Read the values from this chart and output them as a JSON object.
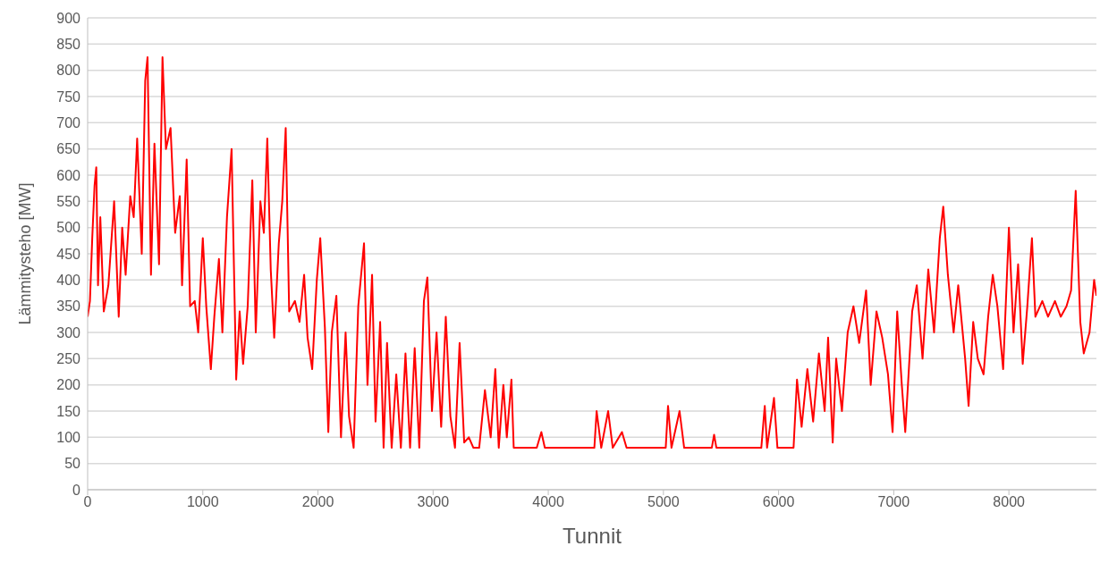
{
  "chart_data": {
    "type": "line",
    "xlabel": "Tunnit",
    "ylabel": "Lämmitysteho [MW]",
    "xlim": [
      0,
      8760
    ],
    "xticks": [
      0,
      1000,
      2000,
      3000,
      4000,
      5000,
      6000,
      7000,
      8000
    ],
    "ylim": [
      0,
      900
    ],
    "yticks": [
      0,
      50,
      100,
      150,
      200,
      250,
      300,
      350,
      400,
      450,
      500,
      550,
      600,
      650,
      700,
      750,
      800,
      850,
      900
    ],
    "grid": "y",
    "legend": false,
    "marker": "none",
    "line_style": "solid",
    "series": [
      {
        "color": "#ff0000",
        "x": [
          0,
          20,
          40,
          60,
          75,
          90,
          110,
          140,
          180,
          230,
          270,
          300,
          330,
          370,
          400,
          430,
          470,
          500,
          520,
          550,
          580,
          620,
          650,
          680,
          720,
          760,
          800,
          820,
          860,
          890,
          930,
          960,
          1000,
          1030,
          1070,
          1100,
          1140,
          1170,
          1210,
          1250,
          1270,
          1290,
          1320,
          1350,
          1390,
          1430,
          1460,
          1500,
          1530,
          1560,
          1590,
          1620,
          1660,
          1690,
          1720,
          1750,
          1800,
          1840,
          1880,
          1910,
          1950,
          1990,
          2020,
          2060,
          2090,
          2120,
          2160,
          2200,
          2240,
          2270,
          2310,
          2350,
          2400,
          2430,
          2470,
          2500,
          2540,
          2570,
          2600,
          2640,
          2680,
          2720,
          2760,
          2800,
          2840,
          2880,
          2920,
          2950,
          2990,
          3030,
          3070,
          3110,
          3150,
          3190,
          3230,
          3270,
          3310,
          3350,
          3400,
          3450,
          3500,
          3540,
          3570,
          3610,
          3640,
          3680,
          3700,
          3900,
          3940,
          3970,
          4400,
          4420,
          4460,
          4520,
          4560,
          4640,
          4680,
          5020,
          5040,
          5070,
          5140,
          5180,
          5420,
          5440,
          5460,
          5850,
          5880,
          5900,
          5960,
          5990,
          6130,
          6160,
          6200,
          6250,
          6300,
          6350,
          6400,
          6430,
          6470,
          6500,
          6550,
          6600,
          6650,
          6700,
          6760,
          6800,
          6850,
          6900,
          6950,
          6990,
          7030,
          7070,
          7100,
          7160,
          7200,
          7250,
          7300,
          7350,
          7400,
          7430,
          7470,
          7520,
          7560,
          7620,
          7650,
          7690,
          7730,
          7780,
          7820,
          7860,
          7900,
          7950,
          8000,
          8040,
          8080,
          8120,
          8160,
          8200,
          8230,
          8290,
          8340,
          8400,
          8450,
          8500,
          8540,
          8580,
          8620,
          8650,
          8700,
          8740,
          8760
        ],
        "values": [
          330,
          360,
          480,
          580,
          615,
          390,
          520,
          340,
          390,
          550,
          330,
          500,
          410,
          560,
          520,
          670,
          450,
          780,
          825,
          410,
          660,
          430,
          825,
          650,
          690,
          490,
          560,
          390,
          630,
          350,
          360,
          300,
          480,
          350,
          230,
          330,
          440,
          300,
          520,
          650,
          430,
          210,
          340,
          240,
          350,
          590,
          300,
          550,
          490,
          670,
          420,
          290,
          470,
          550,
          690,
          340,
          360,
          320,
          410,
          290,
          230,
          400,
          480,
          310,
          110,
          300,
          370,
          100,
          300,
          140,
          80,
          350,
          470,
          200,
          410,
          130,
          320,
          80,
          280,
          80,
          220,
          80,
          260,
          80,
          270,
          80,
          360,
          405,
          150,
          300,
          120,
          330,
          140,
          80,
          280,
          90,
          100,
          80,
          80,
          190,
          100,
          230,
          80,
          200,
          100,
          210,
          80,
          80,
          110,
          80,
          80,
          150,
          80,
          150,
          80,
          110,
          80,
          80,
          160,
          80,
          150,
          80,
          80,
          105,
          80,
          80,
          160,
          80,
          175,
          80,
          80,
          210,
          120,
          230,
          130,
          260,
          150,
          290,
          90,
          250,
          150,
          300,
          350,
          280,
          380,
          200,
          340,
          290,
          220,
          110,
          340,
          200,
          110,
          340,
          390,
          250,
          420,
          300,
          480,
          540,
          410,
          300,
          390,
          250,
          160,
          320,
          250,
          220,
          330,
          410,
          350,
          230,
          500,
          300,
          430,
          240,
          350,
          480,
          330,
          360,
          330,
          360,
          330,
          350,
          380,
          570,
          320,
          260,
          300,
          400,
          370
        ]
      }
    ]
  }
}
